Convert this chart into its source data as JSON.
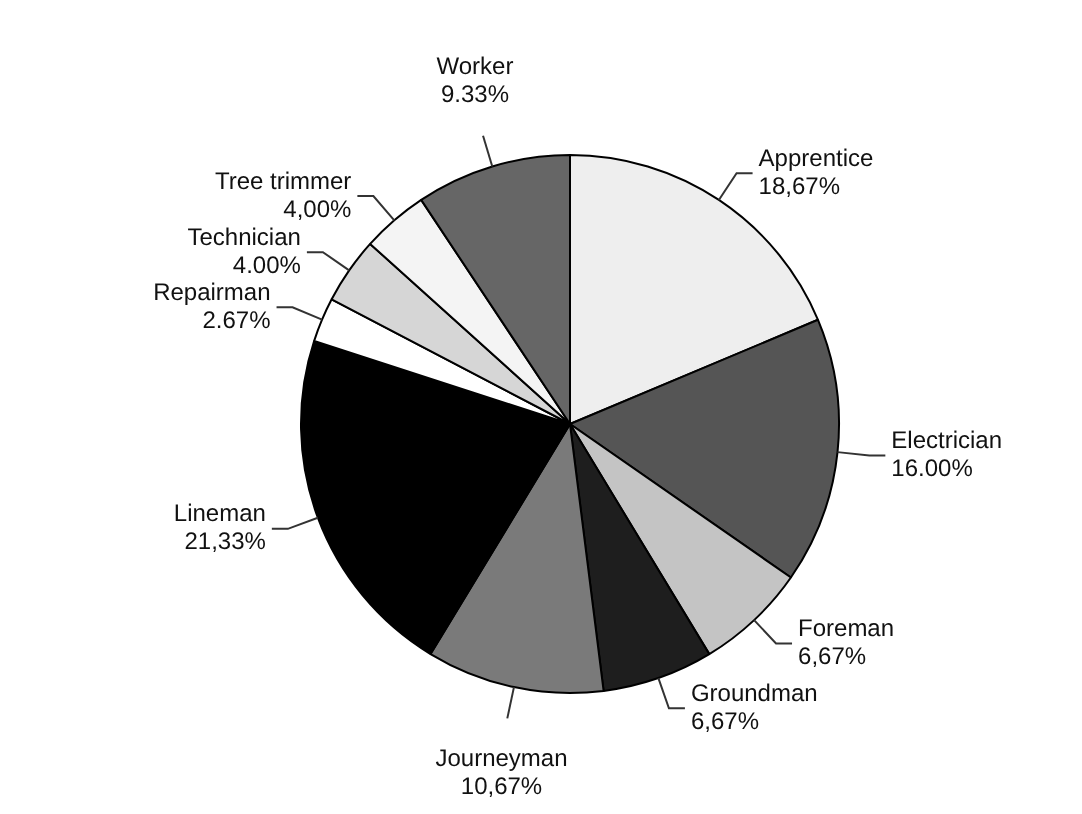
{
  "chart_data": {
    "type": "pie",
    "categories": [
      "Apprentice",
      "Electrician",
      "Foreman",
      "Groundman",
      "Journeyman",
      "Lineman",
      "Repairman",
      "Technician",
      "Tree trimmer",
      "Worker"
    ],
    "values": [
      18.67,
      16.0,
      6.67,
      6.67,
      10.67,
      21.33,
      2.67,
      4.0,
      4.0,
      9.33
    ],
    "value_labels": [
      "18,67%",
      "16.00%",
      "6,67%",
      "6,67%",
      "10,67%",
      "21,33%",
      "2.67%",
      "4.00%",
      "4,00%",
      "9.33%"
    ],
    "colors": [
      "#eeeeee",
      "#555555",
      "#c4c4c4",
      "#1e1e1e",
      "#7a7a7a",
      "#000000",
      "#ffffff",
      "#d6d6d6",
      "#f4f4f4",
      "#666666"
    ],
    "legend": false
  }
}
